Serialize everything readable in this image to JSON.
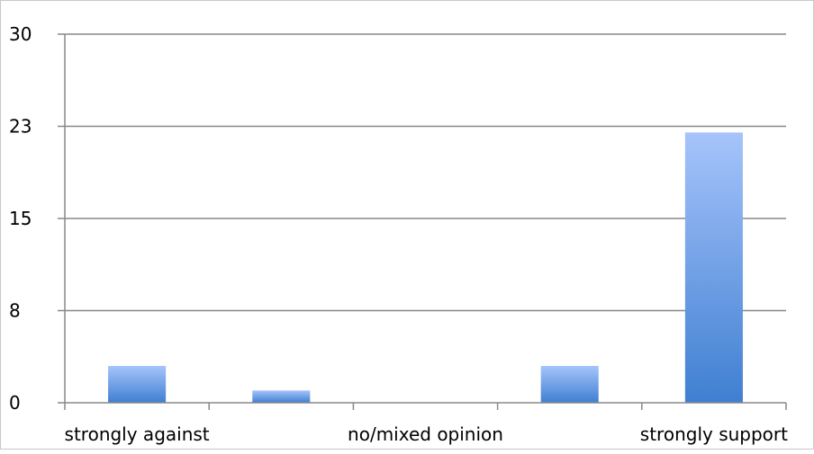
{
  "chart_data": {
    "type": "bar",
    "title": "",
    "xlabel": "",
    "ylabel": "",
    "categories": [
      "strongly against",
      "",
      "no/mixed opinion",
      "",
      "strongly support"
    ],
    "values": [
      3,
      1,
      0,
      3,
      22
    ],
    "y_ticks": [
      "0",
      "8",
      "15",
      "23",
      "30"
    ],
    "ylim": [
      0,
      30
    ],
    "grid": true,
    "legend": "none",
    "colors": {
      "bar_top": "#a6c4fb",
      "bar_bottom": "#3f7fd1",
      "grid": "#888888",
      "frame": "#c8c8c8"
    }
  }
}
